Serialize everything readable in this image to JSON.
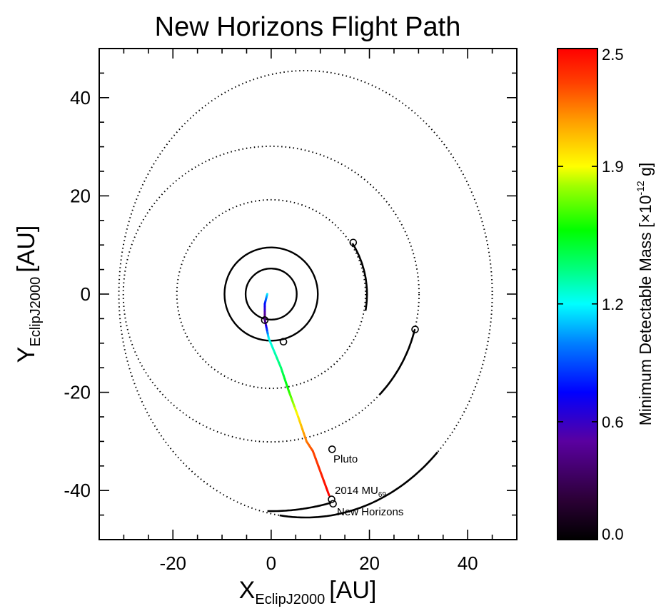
{
  "chart_data": {
    "type": "line",
    "title": "New Horizons Flight Path",
    "xlabel": {
      "main": "X",
      "sub": "EclipJ2000",
      "unit": "[AU]"
    },
    "ylabel": {
      "main": "Y",
      "sub": "EclipJ2000",
      "unit": "[AU]"
    },
    "xlim": [
      -35,
      50
    ],
    "ylim": [
      -50,
      50
    ],
    "xticks": [
      -20,
      0,
      20,
      40
    ],
    "yticks": [
      -40,
      -20,
      0,
      20,
      40
    ],
    "xtick_labels": [
      "-20",
      "0",
      "20",
      "40"
    ],
    "ytick_labels": [
      "-40",
      "-20",
      "0",
      "20",
      "40"
    ],
    "orbits": [
      {
        "name": "Jupiter",
        "radius": 5.2,
        "style": "solid"
      },
      {
        "name": "Saturn",
        "radius": 9.5,
        "style": "solid"
      },
      {
        "name": "Uranus",
        "radius": 19.2,
        "style": "dotted"
      },
      {
        "name": "Neptune",
        "radius": 30.1,
        "style": "dotted"
      },
      {
        "name": "Pluto",
        "center": [
          7,
          0
        ],
        "rx": 38,
        "ry": 45.5,
        "style": "dotted"
      }
    ],
    "orbit_arcs": [
      {
        "name": "Uranus arc",
        "center": [
          0,
          0
        ],
        "radius": 19.5,
        "from_deg": 32,
        "to_deg": -10
      },
      {
        "name": "Neptune arc",
        "center": [
          0,
          0
        ],
        "radius": 30.1,
        "from_deg": -14,
        "to_deg": -43
      },
      {
        "name": "Pluto arc",
        "center": [
          7,
          0
        ],
        "rx": 38,
        "ry": 45.5,
        "from_deg": -45,
        "to_deg": -98
      },
      {
        "name": "2014 MU69 arc",
        "center": [
          0,
          0
        ],
        "radius": 44.2,
        "from_deg": -74,
        "to_deg": -91
      }
    ],
    "trajectory": [
      {
        "x": -0.8,
        "y": 0.0,
        "mass": 1.2
      },
      {
        "x": -1.3,
        "y": -2.0,
        "mass": 0.8
      },
      {
        "x": -1.3,
        "y": -5.2,
        "mass": 0.35
      },
      {
        "x": -0.5,
        "y": -9.0,
        "mass": 1.2
      },
      {
        "x": 2.0,
        "y": -15.0,
        "mass": 1.4
      },
      {
        "x": 3.5,
        "y": -19.5,
        "mass": 1.6
      },
      {
        "x": 5.5,
        "y": -25.0,
        "mass": 1.95
      },
      {
        "x": 7.2,
        "y": -30.0,
        "mass": 2.2
      },
      {
        "x": 8.5,
        "y": -32.0,
        "mass": 2.3
      },
      {
        "x": 11.8,
        "y": -41.0,
        "mass": 2.5
      }
    ],
    "markers": [
      {
        "x": -1.3,
        "y": -5.3,
        "label": ""
      },
      {
        "x": 2.5,
        "y": -9.7,
        "label": ""
      },
      {
        "x": 16.7,
        "y": 10.5,
        "label": ""
      },
      {
        "x": 29.3,
        "y": -7.2,
        "label": ""
      },
      {
        "x": 12.4,
        "y": -31.6,
        "label": "Pluto"
      },
      {
        "x": 12.3,
        "y": -41.8,
        "label": "2014 MU69"
      },
      {
        "x": 12.6,
        "y": -42.7,
        "label": "New Horizons"
      }
    ],
    "labels": {
      "pluto": "Pluto",
      "mu69_main": "2014 MU",
      "mu69_sub": "69",
      "new_horizons": "New Horizons"
    },
    "colorbar": {
      "label_pre": "Minimum Detectable Mass [×10",
      "label_exp": "-12",
      "label_post": " g]",
      "min": 0.0,
      "max": 2.5,
      "ticks": [
        0.0,
        0.6,
        1.2,
        1.9,
        2.5
      ],
      "tick_labels": [
        "0.0",
        "0.6",
        "1.2",
        "1.9",
        "2.5"
      ],
      "colormap": "rainbow (black-purple-blue-cyan-green-yellow-orange-red)"
    },
    "grid": false
  }
}
